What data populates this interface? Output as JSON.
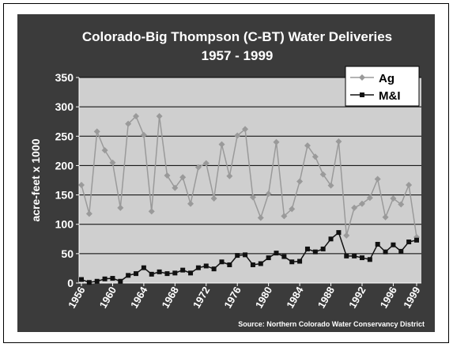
{
  "chart_data": {
    "type": "line",
    "title": "Colorado-Big Thompson (C-BT) Water Deliveries",
    "subtitle": "1957 - 1999",
    "y_label": "acre-feet x 1000",
    "source": "Source:  Northern Colorado Water Conservancy District",
    "x": [
      1956,
      1957,
      1958,
      1959,
      1960,
      1961,
      1962,
      1963,
      1964,
      1965,
      1966,
      1967,
      1968,
      1969,
      1970,
      1971,
      1972,
      1973,
      1974,
      1975,
      1976,
      1977,
      1978,
      1979,
      1980,
      1981,
      1982,
      1983,
      1984,
      1985,
      1986,
      1987,
      1988,
      1989,
      1990,
      1991,
      1992,
      1993,
      1994,
      1995,
      1996,
      1997,
      1998,
      1999
    ],
    "series": [
      {
        "name": "Ag",
        "color": "#9a9a9a",
        "marker": "diamond",
        "values": [
          167,
          118,
          258,
          226,
          205,
          128,
          271,
          284,
          252,
          122,
          284,
          183,
          162,
          180,
          135,
          197,
          204,
          144,
          236,
          182,
          251,
          262,
          146,
          111,
          152,
          240,
          114,
          126,
          173,
          234,
          215,
          185,
          166,
          241,
          81,
          128,
          135,
          145,
          177,
          112,
          144,
          134,
          167,
          78
        ]
      },
      {
        "name": "M&I",
        "color": "#111111",
        "marker": "square",
        "values": [
          6,
          1,
          3,
          7,
          8,
          3,
          13,
          16,
          26,
          15,
          19,
          16,
          17,
          22,
          17,
          26,
          29,
          24,
          36,
          31,
          47,
          48,
          31,
          33,
          43,
          51,
          45,
          36,
          37,
          58,
          53,
          58,
          75,
          86,
          46,
          46,
          43,
          40,
          66,
          53,
          65,
          54,
          70,
          73
        ]
      }
    ],
    "xlim": [
      1956,
      1999
    ],
    "xticks": [
      1956,
      1960,
      1964,
      1968,
      1972,
      1976,
      1980,
      1984,
      1988,
      1992,
      1996,
      1999
    ],
    "ylim": [
      0,
      350
    ],
    "yticks": [
      0,
      50,
      100,
      150,
      200,
      250,
      300,
      350
    ],
    "grid": true,
    "legend": "top-right"
  }
}
